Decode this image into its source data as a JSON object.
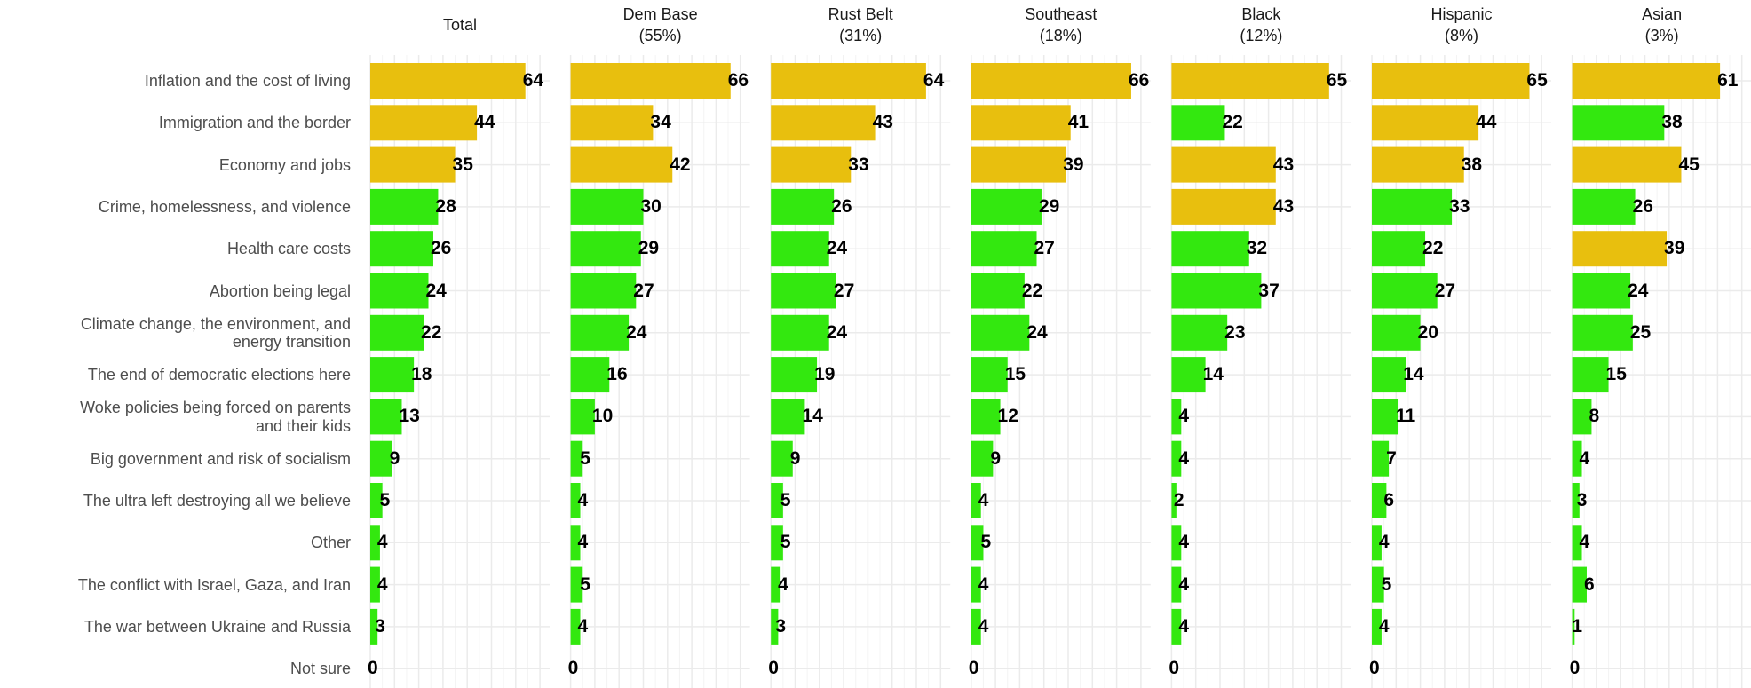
{
  "chart_data": {
    "type": "bar",
    "orientation": "horizontal",
    "grid": true,
    "xlim": [
      0,
      74
    ],
    "xticks": [
      0,
      10,
      20,
      30,
      40,
      50,
      60,
      70
    ],
    "categories": [
      "Inflation and the cost of living",
      "Immigration and the border",
      "Economy and jobs",
      "Crime, homelessness, and violence",
      "Health care costs",
      "Abortion being legal",
      "Climate change, the environment, and\nenergy transition",
      "The end of democratic elections here",
      "Woke policies being forced on parents\nand their kids",
      "Big government and risk of socialism",
      "The ultra left destroying all we believe",
      "Other",
      "The conflict with Israel, Gaza, and Iran",
      "The war between Ukraine and Russia",
      "Not sure"
    ],
    "series": [
      {
        "name": "Total",
        "values": [
          64,
          44,
          35,
          28,
          26,
          24,
          22,
          18,
          13,
          9,
          5,
          4,
          4,
          3,
          0
        ],
        "colors": [
          "#e8bf0e",
          "#e8bf0e",
          "#e8bf0e",
          "#33e80f",
          "#33e80f",
          "#33e80f",
          "#33e80f",
          "#33e80f",
          "#33e80f",
          "#33e80f",
          "#33e80f",
          "#33e80f",
          "#33e80f",
          "#33e80f",
          "#33e80f"
        ]
      },
      {
        "name": "Dem Base",
        "share": "(55%)",
        "values": [
          66,
          34,
          42,
          30,
          29,
          27,
          24,
          16,
          10,
          5,
          4,
          4,
          5,
          4,
          0
        ],
        "colors": [
          "#e8bf0e",
          "#e8bf0e",
          "#e8bf0e",
          "#33e80f",
          "#33e80f",
          "#33e80f",
          "#33e80f",
          "#33e80f",
          "#33e80f",
          "#33e80f",
          "#33e80f",
          "#33e80f",
          "#33e80f",
          "#33e80f",
          "#33e80f"
        ]
      },
      {
        "name": "Rust Belt",
        "share": "(31%)",
        "values": [
          64,
          43,
          33,
          26,
          24,
          27,
          24,
          19,
          14,
          9,
          5,
          5,
          4,
          3,
          0
        ],
        "colors": [
          "#e8bf0e",
          "#e8bf0e",
          "#e8bf0e",
          "#33e80f",
          "#33e80f",
          "#33e80f",
          "#33e80f",
          "#33e80f",
          "#33e80f",
          "#33e80f",
          "#33e80f",
          "#33e80f",
          "#33e80f",
          "#33e80f",
          "#33e80f"
        ]
      },
      {
        "name": "Southeast",
        "share": "(18%)",
        "values": [
          66,
          41,
          39,
          29,
          27,
          22,
          24,
          15,
          12,
          9,
          4,
          5,
          4,
          4,
          0
        ],
        "colors": [
          "#e8bf0e",
          "#e8bf0e",
          "#e8bf0e",
          "#33e80f",
          "#33e80f",
          "#33e80f",
          "#33e80f",
          "#33e80f",
          "#33e80f",
          "#33e80f",
          "#33e80f",
          "#33e80f",
          "#33e80f",
          "#33e80f",
          "#33e80f"
        ]
      },
      {
        "name": "Black",
        "share": "(12%)",
        "values": [
          65,
          22,
          43,
          43,
          32,
          37,
          23,
          14,
          4,
          4,
          2,
          4,
          4,
          4,
          0
        ],
        "colors": [
          "#e8bf0e",
          "#33e80f",
          "#e8bf0e",
          "#e8bf0e",
          "#33e80f",
          "#33e80f",
          "#33e80f",
          "#33e80f",
          "#33e80f",
          "#33e80f",
          "#33e80f",
          "#33e80f",
          "#33e80f",
          "#33e80f",
          "#33e80f"
        ]
      },
      {
        "name": "Hispanic",
        "share": "(8%)",
        "values": [
          65,
          44,
          38,
          33,
          22,
          27,
          20,
          14,
          11,
          7,
          6,
          4,
          5,
          4,
          0
        ],
        "colors": [
          "#e8bf0e",
          "#e8bf0e",
          "#e8bf0e",
          "#33e80f",
          "#33e80f",
          "#33e80f",
          "#33e80f",
          "#33e80f",
          "#33e80f",
          "#33e80f",
          "#33e80f",
          "#33e80f",
          "#33e80f",
          "#33e80f",
          "#33e80f"
        ]
      },
      {
        "name": "Asian",
        "share": "(3%)",
        "values": [
          61,
          38,
          45,
          26,
          39,
          24,
          25,
          15,
          8,
          4,
          3,
          4,
          6,
          1,
          0
        ],
        "colors": [
          "#e8bf0e",
          "#33e80f",
          "#e8bf0e",
          "#33e80f",
          "#e8bf0e",
          "#33e80f",
          "#33e80f",
          "#33e80f",
          "#33e80f",
          "#33e80f",
          "#33e80f",
          "#33e80f",
          "#33e80f",
          "#33e80f",
          "#33e80f"
        ]
      }
    ]
  }
}
